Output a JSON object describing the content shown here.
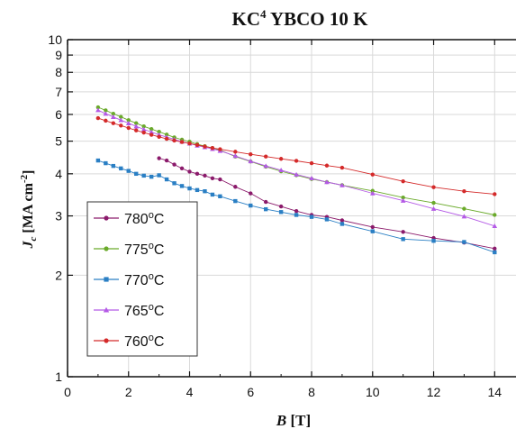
{
  "chart_data": {
    "type": "line",
    "title": {
      "main": "KC",
      "sup": "4",
      "rest": " YBCO 10 K"
    },
    "xlabel": {
      "var": "B",
      "unit": " [T]"
    },
    "ylabel": {
      "var": "J",
      "sub": "c",
      "unit": " [MA cm",
      "sup": "-2",
      "close": "]"
    },
    "xlim": [
      0,
      14.7
    ],
    "ylim": [
      1,
      10
    ],
    "yscale": "log",
    "grid": true,
    "legend_position": "lower-left",
    "x_ticks": [
      "0",
      "2",
      "4",
      "6",
      "8",
      "10",
      "12",
      "14"
    ],
    "x_tick_values": [
      0,
      2,
      4,
      6,
      8,
      10,
      12,
      14
    ],
    "y_ticks": [
      "1",
      "2",
      "3",
      "4",
      "5",
      "6",
      "7",
      "8",
      "9",
      "10"
    ],
    "y_tick_values": [
      1,
      2,
      3,
      4,
      5,
      6,
      7,
      8,
      9,
      10
    ],
    "series": [
      {
        "name": "780",
        "unit": "oC",
        "color": "#8b1a6b",
        "marker": "circle",
        "x": [
          3.0,
          3.25,
          3.5,
          3.75,
          4.0,
          4.25,
          4.5,
          4.75,
          5.0,
          5.5,
          6.0,
          6.5,
          7.0,
          7.5,
          8.0,
          8.5,
          9.0,
          10.0,
          11.0,
          12.0,
          13.0,
          14.0
        ],
        "y": [
          4.45,
          4.38,
          4.26,
          4.15,
          4.06,
          4.0,
          3.95,
          3.88,
          3.85,
          3.66,
          3.5,
          3.3,
          3.2,
          3.1,
          3.02,
          2.98,
          2.91,
          2.78,
          2.69,
          2.58,
          2.5,
          2.4
        ]
      },
      {
        "name": "775",
        "unit": "oC",
        "color": "#6aaa2a",
        "marker": "circle",
        "x": [
          1.0,
          1.25,
          1.5,
          1.75,
          2.0,
          2.25,
          2.5,
          2.75,
          3.0,
          3.25,
          3.5,
          3.75,
          4.0,
          4.25,
          4.5,
          4.75,
          5.0,
          5.5,
          6.0,
          6.5,
          7.0,
          7.5,
          8.0,
          8.5,
          9.0,
          10.0,
          11.0,
          12.0,
          13.0,
          14.0
        ],
        "y": [
          6.3,
          6.17,
          6.03,
          5.9,
          5.77,
          5.65,
          5.53,
          5.43,
          5.33,
          5.23,
          5.13,
          5.05,
          4.98,
          4.9,
          4.83,
          4.77,
          4.7,
          4.5,
          4.35,
          4.2,
          4.07,
          3.96,
          3.86,
          3.78,
          3.7,
          3.56,
          3.4,
          3.28,
          3.15,
          3.02
        ]
      },
      {
        "name": "770",
        "unit": "oC",
        "color": "#2a7fc4",
        "marker": "square",
        "x": [
          1.0,
          1.25,
          1.5,
          1.75,
          2.0,
          2.25,
          2.5,
          2.75,
          3.0,
          3.25,
          3.5,
          3.75,
          4.0,
          4.25,
          4.5,
          4.75,
          5.0,
          5.5,
          6.0,
          6.5,
          7.0,
          7.5,
          8.0,
          8.5,
          9.0,
          10.0,
          11.0,
          12.0,
          13.0,
          14.0
        ],
        "y": [
          4.38,
          4.3,
          4.22,
          4.15,
          4.08,
          4.0,
          3.95,
          3.92,
          3.96,
          3.85,
          3.75,
          3.68,
          3.62,
          3.58,
          3.55,
          3.47,
          3.43,
          3.32,
          3.22,
          3.14,
          3.08,
          3.02,
          2.98,
          2.93,
          2.84,
          2.7,
          2.56,
          2.53,
          2.51,
          2.34
        ]
      },
      {
        "name": "765",
        "unit": "oC",
        "color": "#b45ae6",
        "marker": "triangle",
        "x": [
          1.0,
          1.25,
          1.5,
          1.75,
          2.0,
          2.25,
          2.5,
          2.75,
          3.0,
          3.25,
          3.5,
          3.75,
          4.0,
          4.25,
          4.5,
          4.75,
          5.0,
          5.5,
          6.0,
          6.5,
          7.0,
          7.5,
          8.0,
          8.5,
          9.0,
          10.0,
          11.0,
          12.0,
          13.0,
          14.0
        ],
        "y": [
          6.18,
          6.03,
          5.9,
          5.77,
          5.65,
          5.53,
          5.42,
          5.32,
          5.22,
          5.14,
          5.06,
          4.98,
          4.92,
          4.85,
          4.8,
          4.74,
          4.68,
          4.52,
          4.36,
          4.22,
          4.1,
          3.98,
          3.88,
          3.78,
          3.7,
          3.5,
          3.33,
          3.15,
          2.99,
          2.8
        ]
      },
      {
        "name": "760",
        "unit": "oC",
        "color": "#d42a2a",
        "marker": "circle",
        "x": [
          1.0,
          1.25,
          1.5,
          1.75,
          2.0,
          2.25,
          2.5,
          2.75,
          3.0,
          3.25,
          3.5,
          3.75,
          4.0,
          4.25,
          4.5,
          4.75,
          5.0,
          5.5,
          6.0,
          6.5,
          7.0,
          7.5,
          8.0,
          8.5,
          9.0,
          10.0,
          11.0,
          12.0,
          13.0,
          14.0
        ],
        "y": [
          5.85,
          5.75,
          5.65,
          5.56,
          5.47,
          5.38,
          5.3,
          5.22,
          5.15,
          5.08,
          5.02,
          4.97,
          4.92,
          4.87,
          4.82,
          4.77,
          4.73,
          4.65,
          4.57,
          4.5,
          4.43,
          4.37,
          4.3,
          4.23,
          4.17,
          3.98,
          3.8,
          3.65,
          3.55,
          3.48
        ]
      }
    ]
  }
}
